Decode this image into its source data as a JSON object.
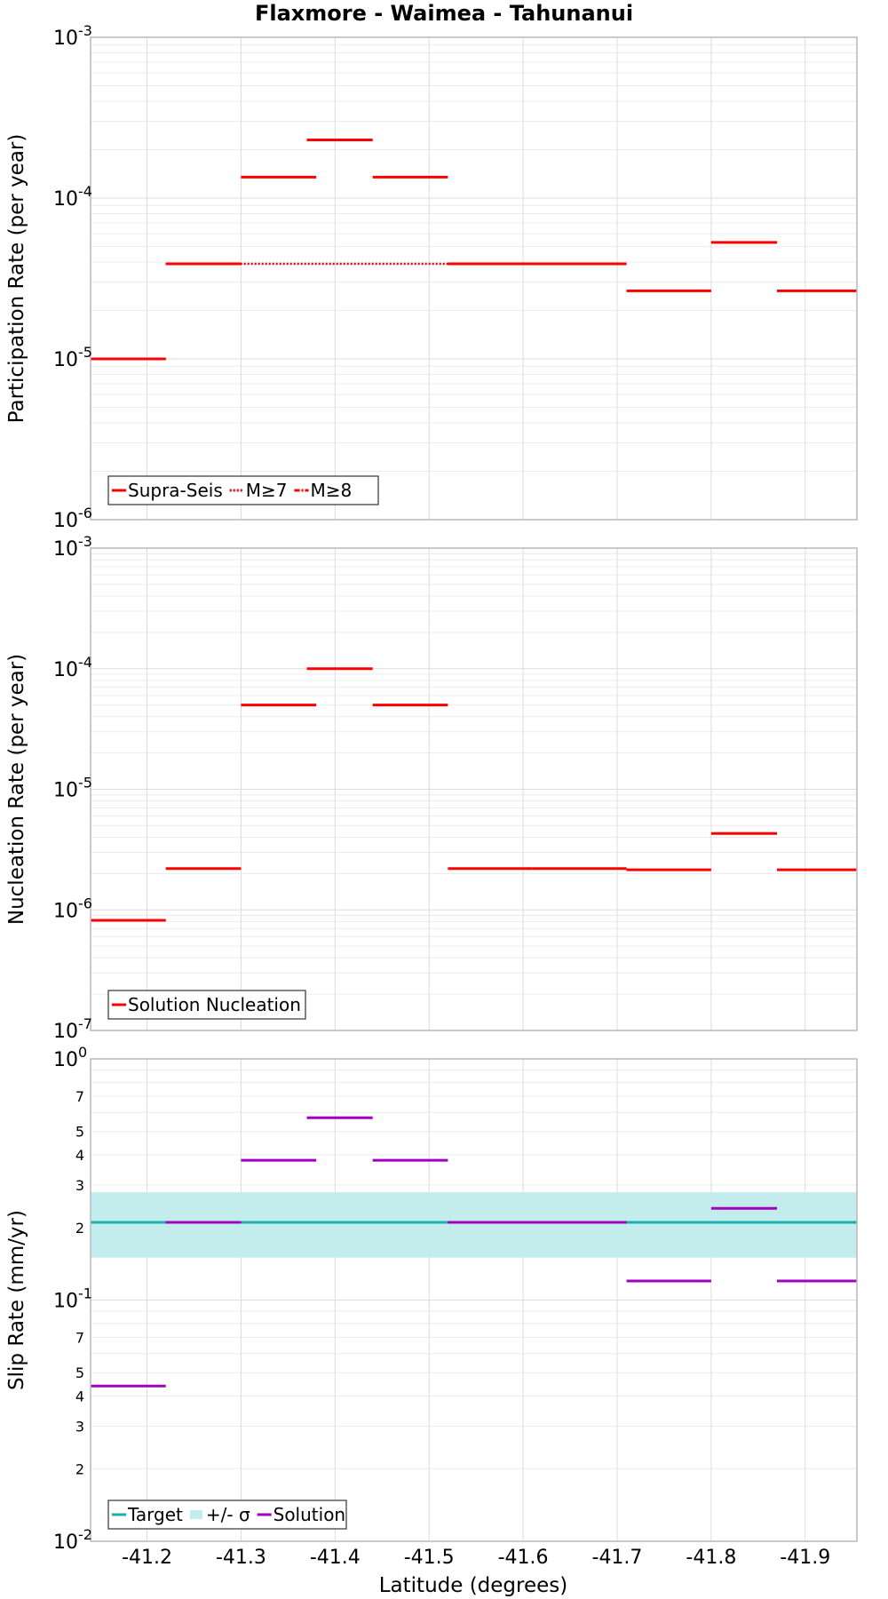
{
  "title": "Flaxmore - Waimea - Tahunanui",
  "xlabel": "Latitude (degrees)",
  "x_ticks": [
    "-41.2",
    "-41.3",
    "-41.4",
    "-41.5",
    "-41.6",
    "-41.7",
    "-41.8",
    "-41.9"
  ],
  "colors": {
    "red": "#ff0000",
    "teal": "#1aaeae",
    "band": "#c3ecec",
    "purple": "#a000c0"
  },
  "chart_data": [
    {
      "type": "line",
      "ylabel": "Participation Rate (per year)",
      "yscale": "log",
      "xlim": [
        -41.14,
        -41.955
      ],
      "ylim": [
        1e-06,
        0.001
      ],
      "y_ticks": [
        {
          "base": "10",
          "exp": "-3"
        },
        {
          "base": "10",
          "exp": "-4"
        },
        {
          "base": "10",
          "exp": "-5"
        },
        {
          "base": "10",
          "exp": "-6"
        }
      ],
      "legend": [
        "Supra-Seis",
        "M≥7",
        "M≥8"
      ],
      "legend_position": "bottom-left",
      "series": [
        {
          "name": "Supra-Seis",
          "segments": [
            {
              "x0": -41.14,
              "x1": -41.22,
              "y": 1e-05
            },
            {
              "x0": -41.22,
              "x1": -41.3,
              "y": 3.9e-05
            },
            {
              "x0": -41.3,
              "x1": -41.38,
              "y": 0.000135
            },
            {
              "x0": -41.37,
              "x1": -41.44,
              "y": 0.00023
            },
            {
              "x0": -41.44,
              "x1": -41.52,
              "y": 0.000135
            },
            {
              "x0": -41.52,
              "x1": -41.61,
              "y": 3.9e-05
            },
            {
              "x0": -41.61,
              "x1": -41.71,
              "y": 3.9e-05
            },
            {
              "x0": -41.71,
              "x1": -41.8,
              "y": 2.65e-05
            },
            {
              "x0": -41.8,
              "x1": -41.87,
              "y": 5.3e-05
            },
            {
              "x0": -41.87,
              "x1": -41.955,
              "y": 2.65e-05
            }
          ]
        },
        {
          "name": "M≥7",
          "segments": [
            {
              "x0": -41.14,
              "x1": -41.22,
              "y": 1e-05
            },
            {
              "x0": -41.22,
              "x1": -41.71,
              "y": 3.9e-05
            },
            {
              "x0": -41.8,
              "x1": -41.87,
              "y": 5.3e-05
            }
          ]
        },
        {
          "name": "M≥8",
          "segments": []
        }
      ]
    },
    {
      "type": "line",
      "ylabel": "Nucleation Rate (per year)",
      "yscale": "log",
      "xlim": [
        -41.14,
        -41.955
      ],
      "ylim": [
        1e-07,
        0.001
      ],
      "y_ticks": [
        {
          "base": "10",
          "exp": "-3"
        },
        {
          "base": "10",
          "exp": "-4"
        },
        {
          "base": "10",
          "exp": "-5"
        },
        {
          "base": "10",
          "exp": "-6"
        },
        {
          "base": "10",
          "exp": "-7"
        }
      ],
      "legend": [
        "Solution Nucleation"
      ],
      "legend_position": "bottom-left",
      "series": [
        {
          "name": "Solution Nucleation",
          "segments": [
            {
              "x0": -41.14,
              "x1": -41.22,
              "y": 8.2e-07
            },
            {
              "x0": -41.22,
              "x1": -41.3,
              "y": 2.2e-06
            },
            {
              "x0": -41.3,
              "x1": -41.38,
              "y": 5e-05
            },
            {
              "x0": -41.37,
              "x1": -41.44,
              "y": 0.0001
            },
            {
              "x0": -41.44,
              "x1": -41.52,
              "y": 5e-05
            },
            {
              "x0": -41.52,
              "x1": -41.61,
              "y": 2.2e-06
            },
            {
              "x0": -41.61,
              "x1": -41.71,
              "y": 2.2e-06
            },
            {
              "x0": -41.71,
              "x1": -41.8,
              "y": 2.15e-06
            },
            {
              "x0": -41.8,
              "x1": -41.87,
              "y": 4.3e-06
            },
            {
              "x0": -41.87,
              "x1": -41.955,
              "y": 2.15e-06
            }
          ]
        }
      ]
    },
    {
      "type": "line",
      "ylabel": "Slip Rate (mm/yr)",
      "yscale": "log",
      "xlim": [
        -41.14,
        -41.955
      ],
      "ylim": [
        0.01,
        1.0
      ],
      "y_ticks": [
        {
          "base": "10",
          "exp": "0"
        },
        {
          "base": "10",
          "exp": "-1"
        },
        {
          "base": "10",
          "exp": "-2"
        }
      ],
      "y_minor_labels": [
        "7",
        "5",
        "4",
        "3",
        "2",
        "7",
        "5",
        "4",
        "3",
        "2"
      ],
      "y_minor_values": [
        0.7,
        0.5,
        0.4,
        0.3,
        0.2,
        0.07,
        0.05,
        0.04,
        0.03,
        0.02
      ],
      "legend": [
        "Target",
        "+/- σ",
        "Solution"
      ],
      "legend_position": "bottom-left",
      "target": 0.21,
      "sigma_band": [
        0.15,
        0.28
      ],
      "series": [
        {
          "name": "Solution",
          "segments": [
            {
              "x0": -41.14,
              "x1": -41.22,
              "y": 0.044
            },
            {
              "x0": -41.22,
              "x1": -41.3,
              "y": 0.21
            },
            {
              "x0": -41.3,
              "x1": -41.38,
              "y": 0.38
            },
            {
              "x0": -41.37,
              "x1": -41.44,
              "y": 0.57
            },
            {
              "x0": -41.44,
              "x1": -41.52,
              "y": 0.38
            },
            {
              "x0": -41.52,
              "x1": -41.61,
              "y": 0.21
            },
            {
              "x0": -41.61,
              "x1": -41.71,
              "y": 0.21
            },
            {
              "x0": -41.71,
              "x1": -41.8,
              "y": 0.12
            },
            {
              "x0": -41.8,
              "x1": -41.87,
              "y": 0.24
            },
            {
              "x0": -41.87,
              "x1": -41.955,
              "y": 0.12
            }
          ]
        }
      ]
    }
  ]
}
